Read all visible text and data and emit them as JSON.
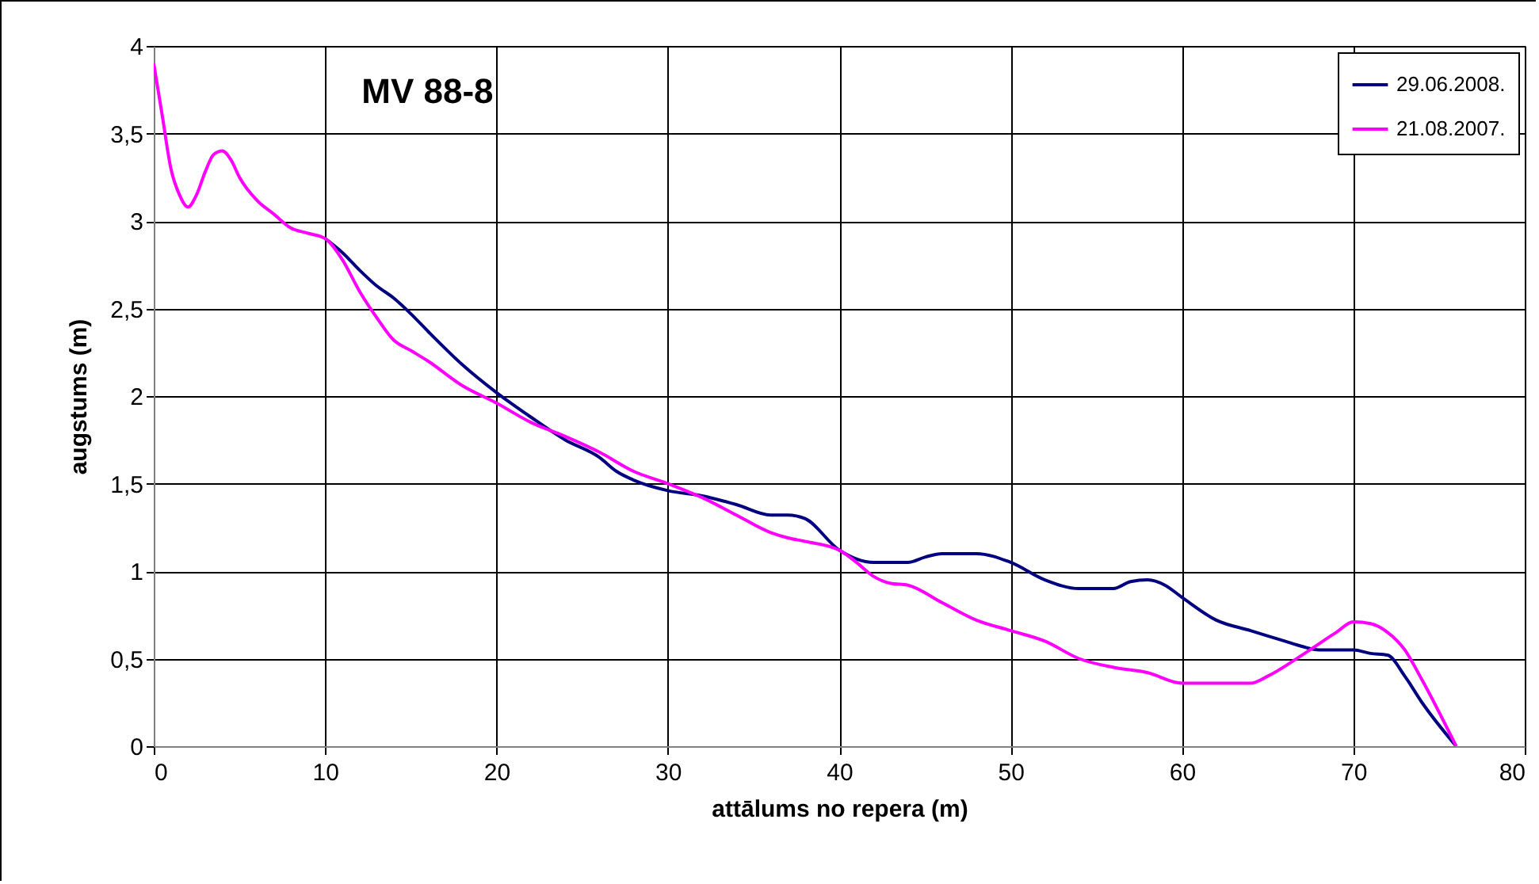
{
  "chart_data": {
    "type": "line",
    "title": "MV 88-8",
    "xlabel": "attālums no repera (m)",
    "ylabel": "augstums (m)",
    "xlim": [
      0,
      80
    ],
    "xticks": [
      0,
      10,
      20,
      30,
      40,
      50,
      60,
      70,
      80
    ],
    "ylim": [
      0,
      4
    ],
    "yticks": [
      0,
      {
        "value": 0.5,
        "label": "0,5"
      },
      1,
      {
        "value": 1.5,
        "label": "1,5"
      },
      2,
      {
        "value": 2.5,
        "label": "2,5"
      },
      3,
      {
        "value": 3.5,
        "label": "3,5"
      },
      4
    ],
    "grid": true,
    "legend": "top right",
    "series": [
      {
        "name": "29.06.2008.",
        "color": "#000080",
        "x": [
          10,
          11,
          12,
          13,
          14,
          15,
          16,
          18,
          20,
          22,
          24,
          26,
          27,
          28,
          30,
          32,
          34,
          36,
          37,
          38,
          40,
          41,
          42,
          44,
          45,
          46,
          48,
          50,
          52,
          54,
          56,
          57,
          58,
          59,
          60,
          62,
          64,
          66,
          67,
          68,
          70,
          71,
          72,
          73,
          74,
          76
        ],
        "values": [
          2.9,
          2.82,
          2.72,
          2.63,
          2.56,
          2.47,
          2.37,
          2.18,
          2.02,
          1.88,
          1.75,
          1.65,
          1.57,
          1.52,
          1.46,
          1.43,
          1.38,
          1.32,
          1.32,
          1.3,
          1.12,
          1.07,
          1.05,
          1.05,
          1.08,
          1.1,
          1.1,
          1.05,
          0.95,
          0.9,
          0.9,
          0.94,
          0.95,
          0.92,
          0.85,
          0.72,
          0.66,
          0.6,
          0.57,
          0.55,
          0.55,
          0.53,
          0.52,
          0.4,
          0.25,
          0
        ]
      },
      {
        "name": "21.08.2007.",
        "color": "#ff00ff",
        "x": [
          0,
          0.5,
          1,
          1.5,
          2,
          2.5,
          3,
          3.5,
          4,
          4.5,
          5,
          6,
          7,
          8,
          9,
          10,
          11,
          12,
          13,
          14,
          15,
          16,
          18,
          20,
          22,
          24,
          26,
          28,
          30,
          32,
          34,
          36,
          37,
          38,
          40,
          41,
          42,
          43,
          44,
          46,
          48,
          50,
          52,
          54,
          56,
          58,
          60,
          62,
          64,
          65,
          67,
          69,
          70,
          71,
          72,
          73,
          74,
          76
        ],
        "values": [
          3.9,
          3.6,
          3.3,
          3.15,
          3.08,
          3.15,
          3.28,
          3.38,
          3.4,
          3.35,
          3.25,
          3.12,
          3.04,
          2.96,
          2.93,
          2.9,
          2.78,
          2.6,
          2.45,
          2.32,
          2.26,
          2.2,
          2.06,
          1.96,
          1.85,
          1.77,
          1.68,
          1.57,
          1.5,
          1.42,
          1.32,
          1.22,
          1.19,
          1.17,
          1.12,
          1.05,
          0.97,
          0.93,
          0.92,
          0.82,
          0.72,
          0.66,
          0.6,
          0.5,
          0.45,
          0.42,
          0.36,
          0.36,
          0.36,
          0.4,
          0.52,
          0.65,
          0.71,
          0.7,
          0.65,
          0.55,
          0.38,
          0
        ]
      }
    ]
  }
}
